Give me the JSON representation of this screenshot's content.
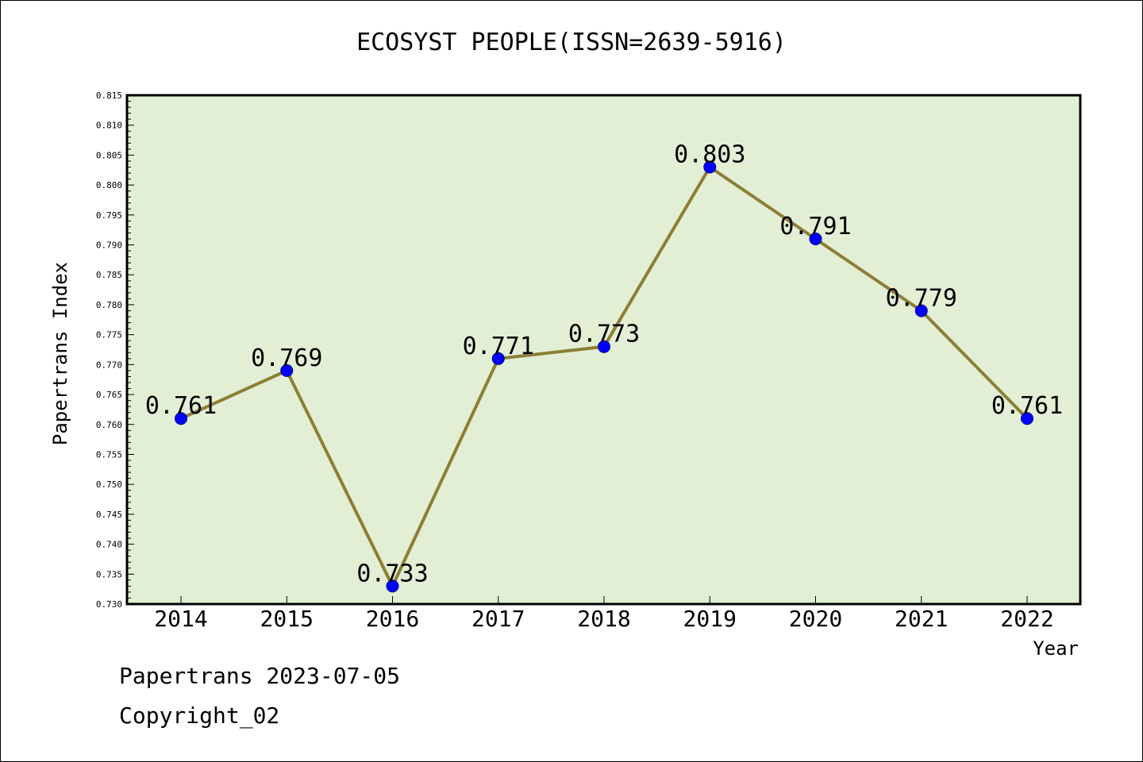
{
  "title": "ECOSYST PEOPLE(ISSN=2639-5916)",
  "footer": {
    "line1": "Papertrans 2023-07-05",
    "line2": "Copyright_02"
  },
  "colors": {
    "plot_bg": "#e2efd5",
    "line": "#8c7e35",
    "marker": "#0000ff"
  },
  "chart_data": {
    "type": "line",
    "title": "ECOSYST PEOPLE(ISSN=2639-5916)",
    "xlabel": "Year",
    "ylabel": "Papertrans Index",
    "x": [
      "2014",
      "2015",
      "2016",
      "2017",
      "2018",
      "2019",
      "2020",
      "2021",
      "2022"
    ],
    "series": [
      {
        "values": [
          0.761,
          0.769,
          0.733,
          0.771,
          0.773,
          0.803,
          0.791,
          0.779,
          0.761
        ],
        "labels": [
          "0.761",
          "0.769",
          "0.733",
          "0.771",
          "0.773",
          "0.803",
          "0.791",
          "0.779",
          "0.761"
        ]
      }
    ],
    "ylim": [
      0.73,
      0.815
    ],
    "yticks": [
      "0.730",
      "0.735",
      "0.740",
      "0.745",
      "0.750",
      "0.755",
      "0.760",
      "0.765",
      "0.770",
      "0.775",
      "0.780",
      "0.785",
      "0.790",
      "0.795",
      "0.800",
      "0.805",
      "0.810",
      "0.815"
    ],
    "grid": false,
    "legend": "none"
  }
}
